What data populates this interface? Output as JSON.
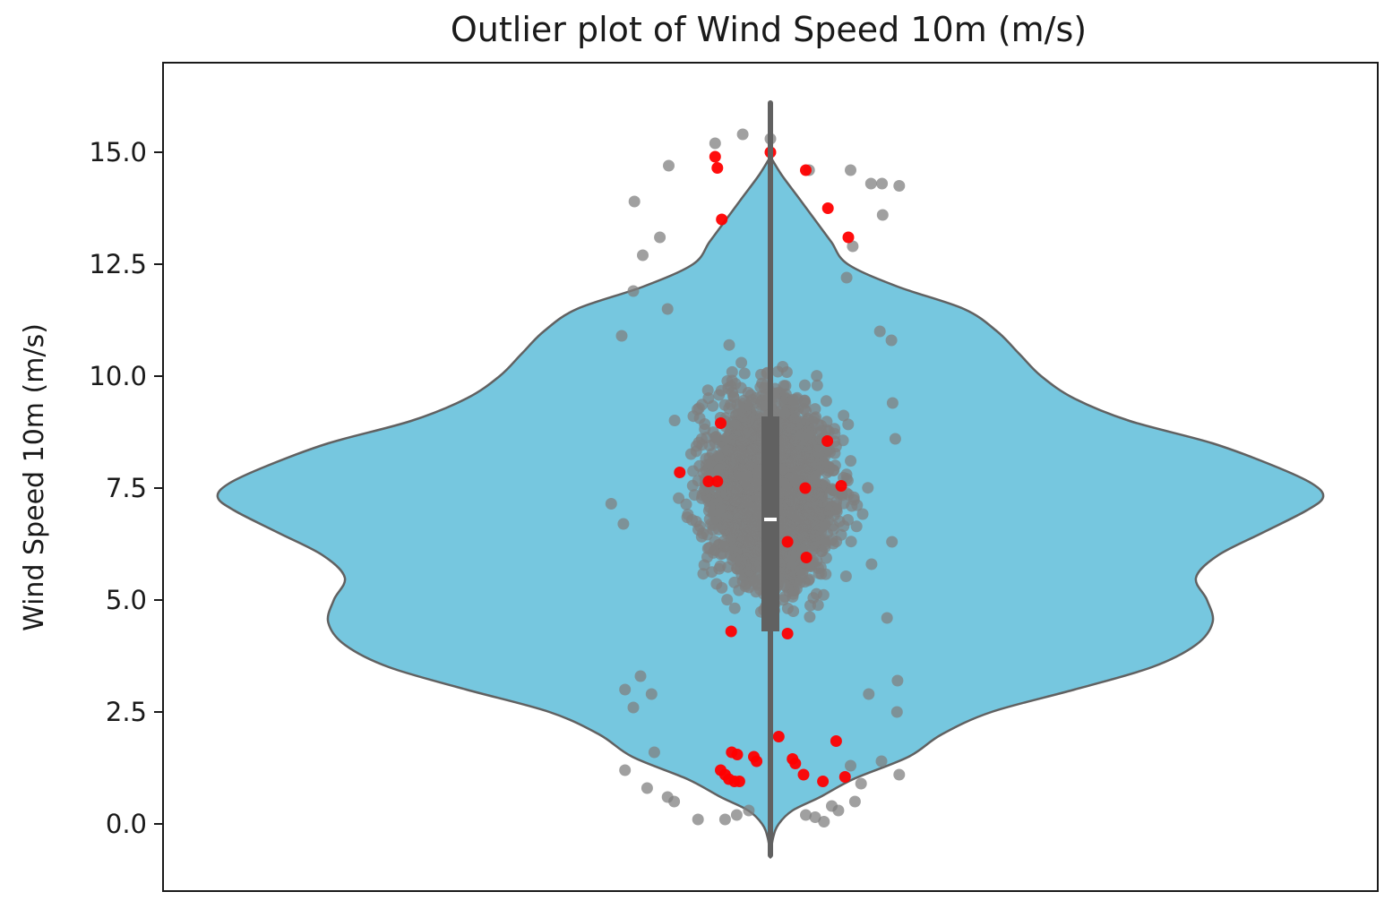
{
  "chart_data": {
    "type": "violin",
    "title": "Outlier plot of Wind Speed 10m (m/s)",
    "xlabel": "",
    "ylabel": "Wind Speed 10m (m/s)",
    "ylim": [
      -1.5,
      17.0
    ],
    "yticks": [
      0.0,
      2.5,
      5.0,
      7.5,
      10.0,
      12.5,
      15.0
    ],
    "ytick_labels": [
      "0.0",
      "2.5",
      "5.0",
      "7.5",
      "10.0",
      "12.5",
      "15.0"
    ],
    "grid": false,
    "legend": "none",
    "violin": {
      "color": "#76c7df",
      "edge_color": "#616161",
      "data_range": [
        -0.7,
        16.1
      ],
      "density_profile": [
        {
          "y": -0.7,
          "w": 0.0
        },
        {
          "y": -0.3,
          "w": 0.005
        },
        {
          "y": 0.0,
          "w": 0.015
        },
        {
          "y": 0.3,
          "w": 0.04
        },
        {
          "y": 0.6,
          "w": 0.09
        },
        {
          "y": 1.0,
          "w": 0.15
        },
        {
          "y": 1.5,
          "w": 0.25
        },
        {
          "y": 2.0,
          "w": 0.31
        },
        {
          "y": 2.5,
          "w": 0.4
        },
        {
          "y": 3.0,
          "w": 0.55
        },
        {
          "y": 3.5,
          "w": 0.69
        },
        {
          "y": 4.0,
          "w": 0.77
        },
        {
          "y": 4.5,
          "w": 0.8
        },
        {
          "y": 5.0,
          "w": 0.79
        },
        {
          "y": 5.5,
          "w": 0.77
        },
        {
          "y": 6.0,
          "w": 0.81
        },
        {
          "y": 6.5,
          "w": 0.89
        },
        {
          "y": 7.0,
          "w": 0.97
        },
        {
          "y": 7.3,
          "w": 1.0
        },
        {
          "y": 7.6,
          "w": 0.98
        },
        {
          "y": 8.0,
          "w": 0.91
        },
        {
          "y": 8.5,
          "w": 0.8
        },
        {
          "y": 9.0,
          "w": 0.65
        },
        {
          "y": 9.5,
          "w": 0.55
        },
        {
          "y": 10.0,
          "w": 0.49
        },
        {
          "y": 10.5,
          "w": 0.45
        },
        {
          "y": 11.0,
          "w": 0.41
        },
        {
          "y": 11.5,
          "w": 0.35
        },
        {
          "y": 12.0,
          "w": 0.23
        },
        {
          "y": 12.5,
          "w": 0.14
        },
        {
          "y": 13.0,
          "w": 0.11
        },
        {
          "y": 13.5,
          "w": 0.08
        },
        {
          "y": 14.0,
          "w": 0.05
        },
        {
          "y": 14.5,
          "w": 0.02
        },
        {
          "y": 14.9,
          "w": 0.0
        }
      ]
    },
    "box": {
      "q1": 4.3,
      "median": 6.8,
      "q3": 9.1,
      "whisker_low": -0.7,
      "whisker_high": 16.1,
      "color": "#616161",
      "median_color": "#ffffff"
    },
    "series": [
      {
        "name": "",
        "color": "#808080",
        "role": "inliers",
        "points": [
          [
            -0.082,
            0.1
          ],
          [
            -0.061,
            0.2
          ],
          [
            -0.039,
            0.3
          ],
          [
            0.081,
            0.15
          ],
          [
            0.111,
            0.4
          ],
          [
            -0.223,
            0.8
          ],
          [
            -0.186,
            0.6
          ],
          [
            0.153,
            0.5
          ],
          [
            0.123,
            0.3
          ],
          [
            0.164,
            0.9
          ],
          [
            -0.263,
            1.2
          ],
          [
            -0.21,
            1.6
          ],
          [
            0.201,
            1.4
          ],
          [
            0.233,
            1.1
          ],
          [
            -0.263,
            3.0
          ],
          [
            -0.235,
            3.3
          ],
          [
            -0.248,
            2.6
          ],
          [
            -0.215,
            2.9
          ],
          [
            0.23,
            3.2
          ],
          [
            0.178,
            2.9
          ],
          [
            0.229,
            2.5
          ],
          [
            -0.288,
            7.15
          ],
          [
            -0.266,
            6.7
          ],
          [
            0.211,
            4.6
          ],
          [
            0.22,
            6.3
          ],
          [
            0.183,
            5.8
          ],
          [
            0.219,
            10.8
          ],
          [
            0.198,
            11.0
          ],
          [
            0.221,
            9.4
          ],
          [
            0.226,
            8.6
          ],
          [
            -0.269,
            10.9
          ],
          [
            -0.248,
            11.9
          ],
          [
            -0.231,
            12.7
          ],
          [
            -0.246,
            13.9
          ],
          [
            0.202,
            14.3
          ],
          [
            0.233,
            14.25
          ],
          [
            0.145,
            14.6
          ],
          [
            0.182,
            14.3
          ],
          [
            0.203,
            13.6
          ],
          [
            -0.184,
            14.7
          ],
          [
            -0.1,
            15.2
          ],
          [
            -0.05,
            15.4
          ],
          [
            0.0,
            15.3
          ],
          [
            0.07,
            14.6
          ],
          [
            -0.2,
            13.1
          ],
          [
            0.149,
            12.9
          ],
          [
            -0.186,
            11.5
          ],
          [
            0.138,
            12.2
          ],
          [
            0.145,
            1.3
          ],
          [
            -0.174,
            0.5
          ],
          [
            0.064,
            0.2
          ],
          [
            -0.131,
            0.1
          ],
          [
            0.097,
            0.05
          ]
        ]
      },
      {
        "name": "",
        "color": "#ff0000",
        "role": "outliers",
        "points": [
          [
            0.0,
            15.0
          ],
          [
            -0.1,
            14.9
          ],
          [
            -0.096,
            14.65
          ],
          [
            0.064,
            14.6
          ],
          [
            0.104,
            13.75
          ],
          [
            -0.088,
            13.5
          ],
          [
            0.141,
            13.1
          ],
          [
            -0.09,
            8.95
          ],
          [
            0.103,
            8.55
          ],
          [
            -0.164,
            7.85
          ],
          [
            -0.112,
            7.65
          ],
          [
            -0.096,
            7.65
          ],
          [
            0.128,
            7.55
          ],
          [
            0.063,
            7.5
          ],
          [
            0.031,
            6.3
          ],
          [
            0.065,
            5.95
          ],
          [
            -0.071,
            4.3
          ],
          [
            0.031,
            4.25
          ],
          [
            0.119,
            1.85
          ],
          [
            0.015,
            1.95
          ],
          [
            -0.07,
            1.6
          ],
          [
            -0.06,
            1.55
          ],
          [
            -0.03,
            1.5
          ],
          [
            -0.025,
            1.4
          ],
          [
            0.04,
            1.45
          ],
          [
            0.045,
            1.35
          ],
          [
            -0.09,
            1.2
          ],
          [
            -0.082,
            1.1
          ],
          [
            -0.075,
            1.0
          ],
          [
            -0.065,
            0.95
          ],
          [
            -0.056,
            0.95
          ],
          [
            0.06,
            1.1
          ],
          [
            0.095,
            0.95
          ],
          [
            0.135,
            1.05
          ]
        ]
      }
    ]
  }
}
